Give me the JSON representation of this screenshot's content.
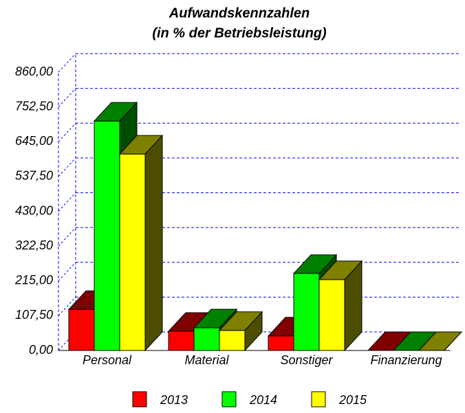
{
  "chart_data": {
    "type": "bar3d",
    "title": "Aufwandskennzahlen",
    "subtitle": "(in % der Betriebsleistung)",
    "categories": [
      "Personal",
      "Material",
      "Sonstiger",
      "Finanzierung"
    ],
    "series": [
      {
        "name": "2013",
        "color": "#ff0000",
        "values": [
          127,
          59.5,
          45,
          0
        ]
      },
      {
        "name": "2014",
        "color": "#00ff00",
        "values": [
          709,
          70,
          238,
          0
        ]
      },
      {
        "name": "2015",
        "color": "#ffff00",
        "values": [
          607,
          62,
          219,
          0
        ]
      }
    ],
    "ylim": [
      0,
      860
    ],
    "yticks": [
      {
        "value": 0,
        "label": "0,00"
      },
      {
        "value": 107.5,
        "label": "107,50"
      },
      {
        "value": 215,
        "label": "215,00"
      },
      {
        "value": 322.5,
        "label": "322,50"
      },
      {
        "value": 430,
        "label": "430,00"
      },
      {
        "value": 537.5,
        "label": "537,50"
      },
      {
        "value": 645,
        "label": "645,00"
      },
      {
        "value": 752.5,
        "label": "752,50"
      },
      {
        "value": 860,
        "label": "860,00"
      }
    ],
    "grid": true
  }
}
